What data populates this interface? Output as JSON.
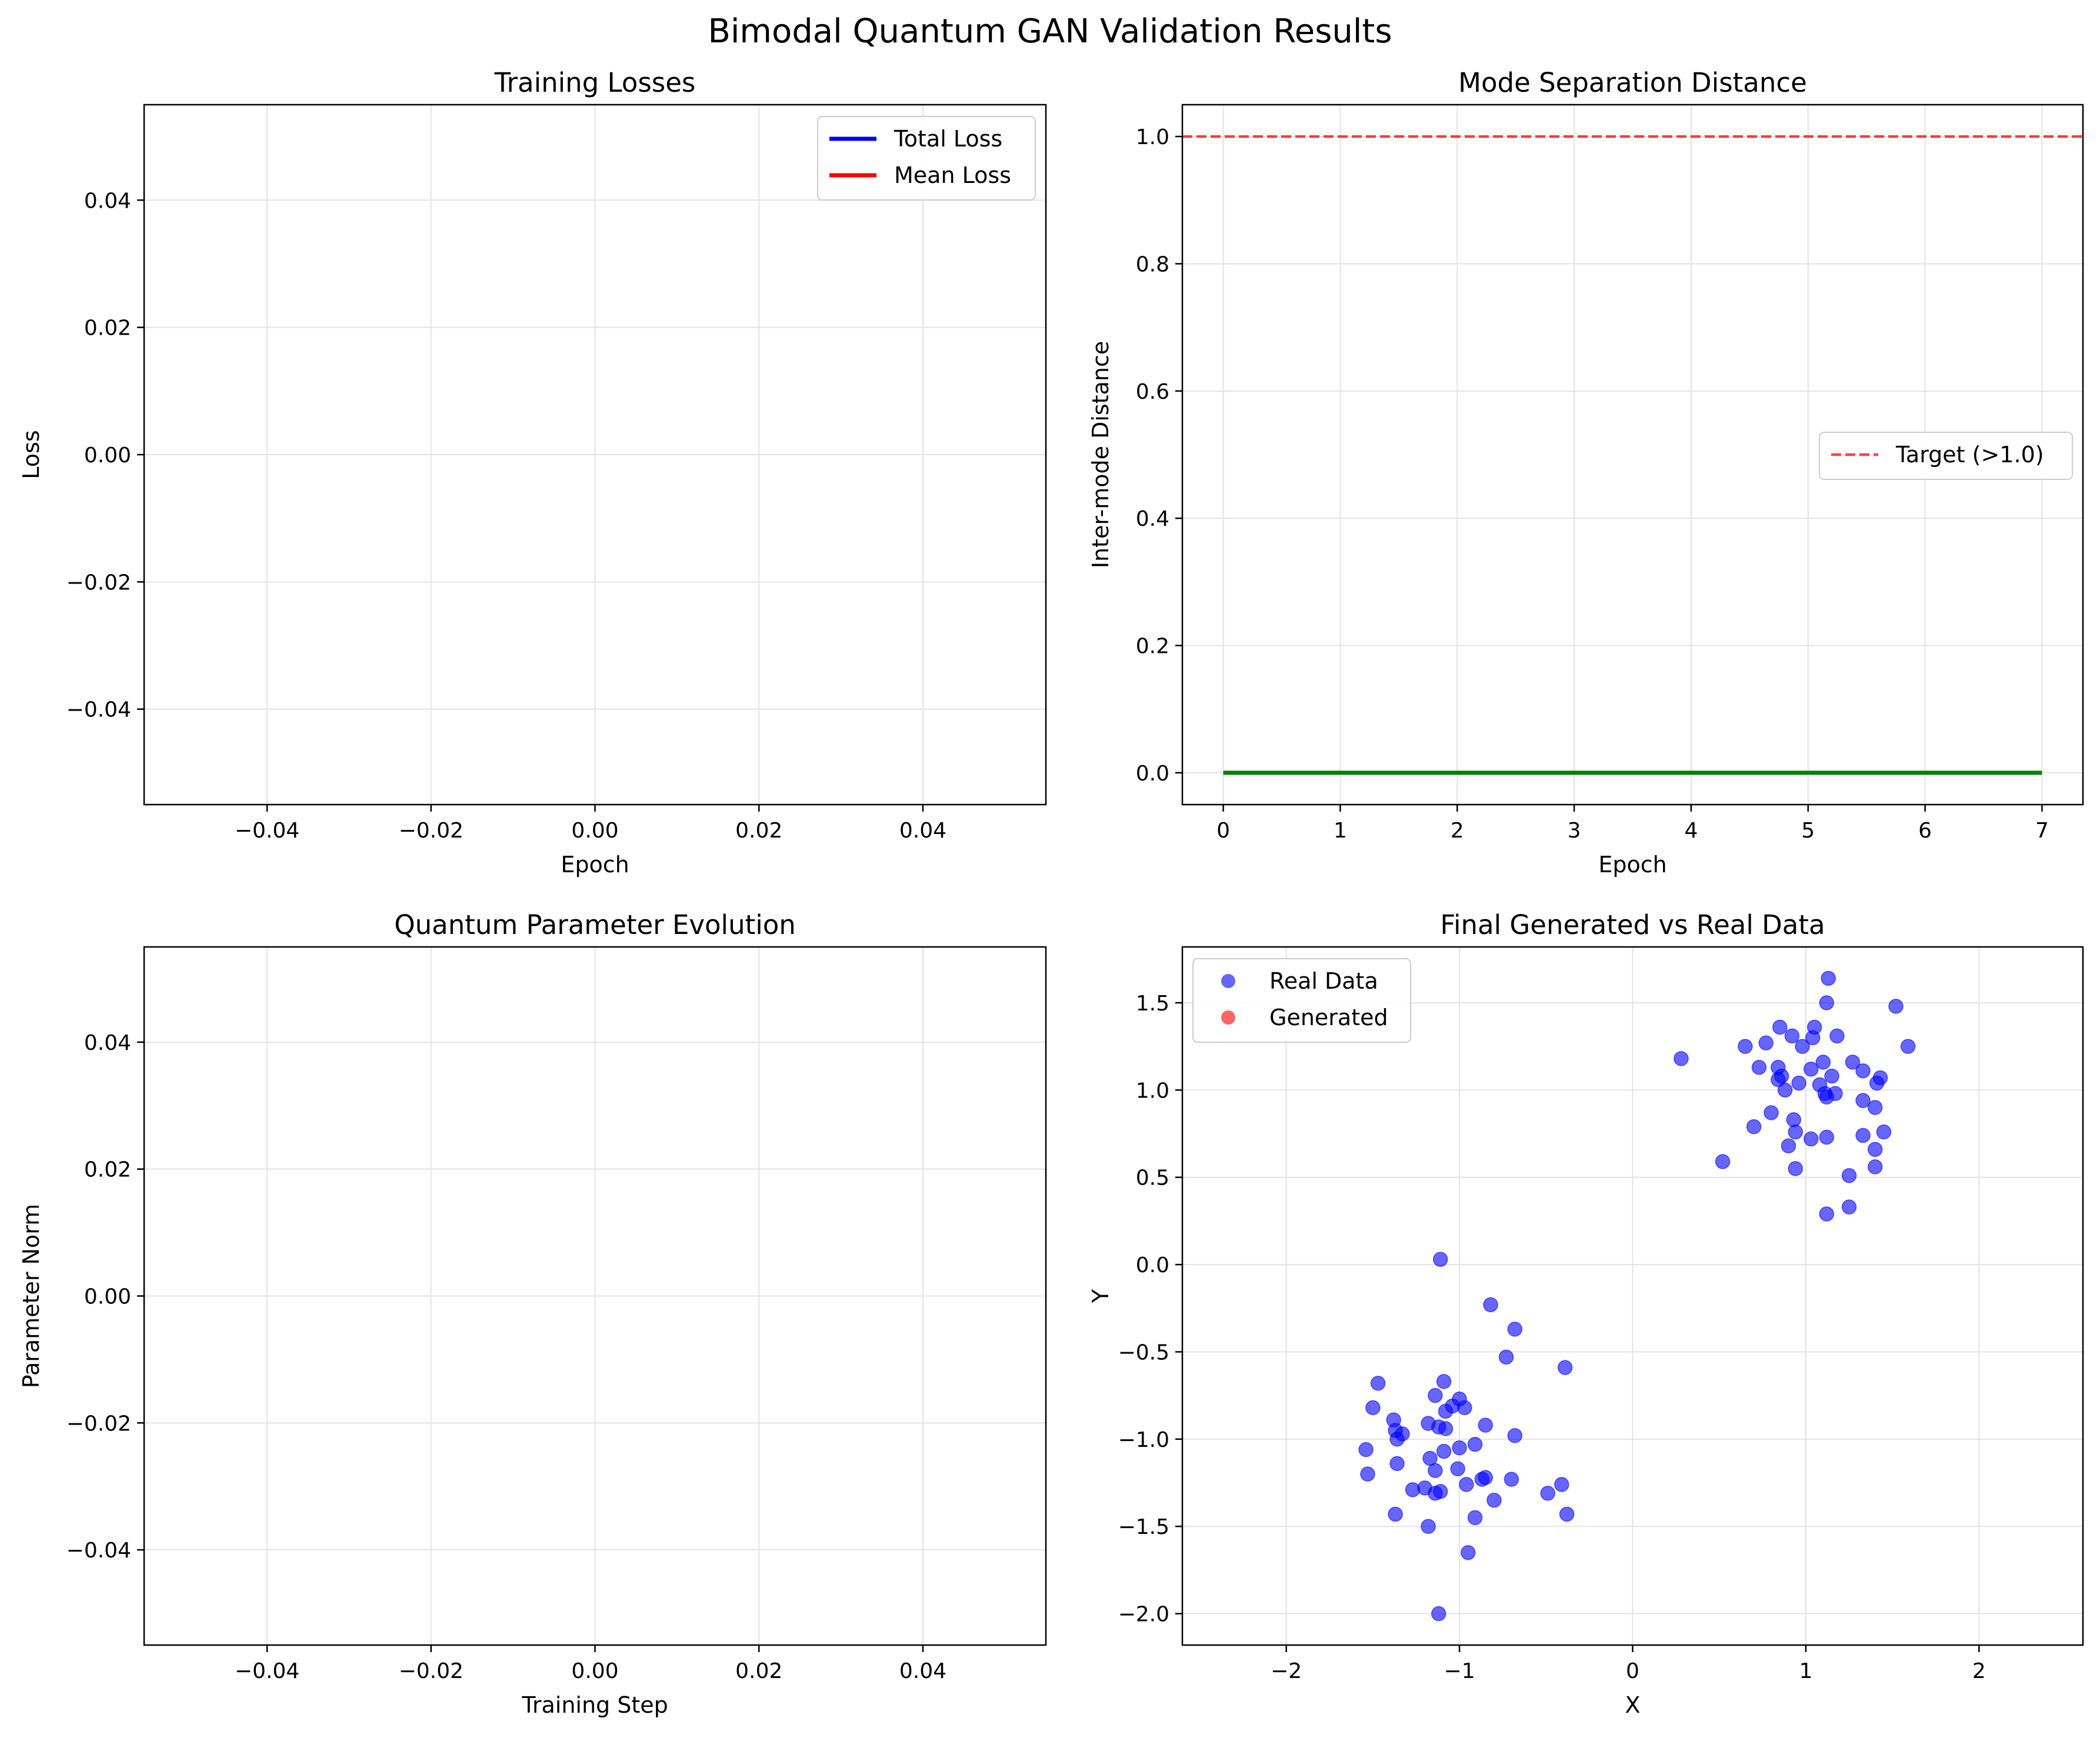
{
  "figure": {
    "suptitle": "Bimodal Quantum GAN Validation Results"
  },
  "chart_data": [
    {
      "type": "line",
      "title": "Training Losses",
      "xlabel": "Epoch",
      "ylabel": "Loss",
      "xlim": [
        -0.055,
        0.055
      ],
      "ylim": [
        -0.055,
        0.055
      ],
      "xticks": [
        -0.04,
        -0.02,
        0.0,
        0.02,
        0.04
      ],
      "xtick_labels": [
        "−0.04",
        "−0.02",
        "0.00",
        "0.02",
        "0.04"
      ],
      "yticks": [
        -0.04,
        -0.02,
        0.0,
        0.02,
        0.04
      ],
      "ytick_labels": [
        "−0.04",
        "−0.02",
        "0.00",
        "0.02",
        "0.04"
      ],
      "grid": true,
      "legend": "upper right",
      "series": [
        {
          "name": "Total Loss",
          "color": "#0000ff",
          "x": [],
          "y": []
        },
        {
          "name": "Mean Loss",
          "color": "#ff0000",
          "x": [],
          "y": []
        }
      ]
    },
    {
      "type": "line",
      "title": "Mode Separation Distance",
      "xlabel": "Epoch",
      "ylabel": "Inter-mode Distance",
      "xlim": [
        -0.35,
        7.35
      ],
      "ylim": [
        -0.05,
        1.05
      ],
      "xticks": [
        0,
        1,
        2,
        3,
        4,
        5,
        6,
        7
      ],
      "xtick_labels": [
        "0",
        "1",
        "2",
        "3",
        "4",
        "5",
        "6",
        "7"
      ],
      "yticks": [
        0.0,
        0.2,
        0.4,
        0.6,
        0.8,
        1.0
      ],
      "ytick_labels": [
        "0.0",
        "0.2",
        "0.4",
        "0.6",
        "0.8",
        "1.0"
      ],
      "grid": true,
      "legend": "center right",
      "series": [
        {
          "color": "#008000",
          "x": [
            0,
            1,
            2,
            3,
            4,
            5,
            6,
            7
          ],
          "y": [
            0,
            0,
            0,
            0,
            0,
            0,
            0,
            0
          ]
        }
      ],
      "hlines": [
        {
          "name": "Target (>1.0)",
          "y": 1.0,
          "color": "#ff0000",
          "style": "dashed"
        }
      ]
    },
    {
      "type": "line",
      "title": "Quantum Parameter Evolution",
      "xlabel": "Training Step",
      "ylabel": "Parameter Norm",
      "xlim": [
        -0.055,
        0.055
      ],
      "ylim": [
        -0.055,
        0.055
      ],
      "xticks": [
        -0.04,
        -0.02,
        0.0,
        0.02,
        0.04
      ],
      "xtick_labels": [
        "−0.04",
        "−0.02",
        "0.00",
        "0.02",
        "0.04"
      ],
      "yticks": [
        -0.04,
        -0.02,
        0.0,
        0.02,
        0.04
      ],
      "ytick_labels": [
        "−0.04",
        "−0.02",
        "0.00",
        "0.02",
        "0.04"
      ],
      "grid": true,
      "series": []
    },
    {
      "type": "scatter",
      "title": "Final Generated vs Real Data",
      "xlabel": "X",
      "ylabel": "Y",
      "xlim": [
        -2.6,
        2.6
      ],
      "ylim": [
        -2.18,
        1.82
      ],
      "xticks": [
        -2,
        -1,
        0,
        1,
        2
      ],
      "xtick_labels": [
        "−2",
        "−1",
        "0",
        "1",
        "2"
      ],
      "yticks": [
        -2.0,
        -1.5,
        -1.0,
        -0.5,
        0.0,
        0.5,
        1.0,
        1.5
      ],
      "ytick_labels": [
        "−2.0",
        "−1.5",
        "−1.0",
        "−0.5",
        "0.0",
        "0.5",
        "1.0",
        "1.5"
      ],
      "grid": true,
      "legend": "upper left",
      "series": [
        {
          "name": "Real Data",
          "color": "#0000ff",
          "points": [
            [
              1.13,
              1.64
            ],
            [
              1.52,
              1.48
            ],
            [
              1.12,
              1.5
            ],
            [
              0.85,
              1.36
            ],
            [
              1.05,
              1.36
            ],
            [
              1.18,
              1.31
            ],
            [
              0.92,
              1.31
            ],
            [
              1.04,
              1.3
            ],
            [
              0.77,
              1.27
            ],
            [
              0.98,
              1.25
            ],
            [
              0.65,
              1.25
            ],
            [
              1.59,
              1.25
            ],
            [
              0.28,
              1.18
            ],
            [
              1.27,
              1.16
            ],
            [
              1.1,
              1.16
            ],
            [
              0.73,
              1.13
            ],
            [
              0.84,
              1.13
            ],
            [
              1.03,
              1.12
            ],
            [
              1.33,
              1.11
            ],
            [
              0.86,
              1.08
            ],
            [
              1.15,
              1.08
            ],
            [
              1.43,
              1.07
            ],
            [
              0.84,
              1.06
            ],
            [
              0.96,
              1.04
            ],
            [
              1.41,
              1.04
            ],
            [
              1.08,
              1.03
            ],
            [
              0.88,
              1.0
            ],
            [
              1.11,
              0.98
            ],
            [
              1.17,
              0.98
            ],
            [
              1.12,
              0.96
            ],
            [
              1.33,
              0.94
            ],
            [
              1.4,
              0.9
            ],
            [
              0.8,
              0.87
            ],
            [
              0.93,
              0.83
            ],
            [
              0.7,
              0.79
            ],
            [
              0.94,
              0.76
            ],
            [
              1.45,
              0.76
            ],
            [
              1.33,
              0.74
            ],
            [
              1.12,
              0.73
            ],
            [
              1.03,
              0.72
            ],
            [
              0.9,
              0.68
            ],
            [
              1.4,
              0.66
            ],
            [
              0.52,
              0.59
            ],
            [
              1.4,
              0.56
            ],
            [
              0.94,
              0.55
            ],
            [
              1.25,
              0.51
            ],
            [
              1.25,
              0.33
            ],
            [
              1.12,
              0.29
            ],
            [
              -1.11,
              0.03
            ],
            [
              -0.82,
              -0.23
            ],
            [
              -0.68,
              -0.37
            ],
            [
              -0.39,
              -0.59
            ],
            [
              -0.73,
              -0.53
            ],
            [
              -1.47,
              -0.68
            ],
            [
              -1.09,
              -0.67
            ],
            [
              -1.14,
              -0.75
            ],
            [
              -1.0,
              -0.77
            ],
            [
              -1.04,
              -0.81
            ],
            [
              -0.97,
              -0.82
            ],
            [
              -1.5,
              -0.82
            ],
            [
              -1.08,
              -0.84
            ],
            [
              -1.38,
              -0.89
            ],
            [
              -1.18,
              -0.91
            ],
            [
              -0.85,
              -0.92
            ],
            [
              -1.12,
              -0.93
            ],
            [
              -1.08,
              -0.94
            ],
            [
              -1.37,
              -0.95
            ],
            [
              -1.33,
              -0.97
            ],
            [
              -0.68,
              -0.98
            ],
            [
              -1.36,
              -1.0
            ],
            [
              -0.91,
              -1.03
            ],
            [
              -1.0,
              -1.05
            ],
            [
              -1.54,
              -1.06
            ],
            [
              -1.09,
              -1.07
            ],
            [
              -1.17,
              -1.11
            ],
            [
              -1.36,
              -1.14
            ],
            [
              -1.01,
              -1.17
            ],
            [
              -1.14,
              -1.18
            ],
            [
              -1.53,
              -1.2
            ],
            [
              -0.85,
              -1.22
            ],
            [
              -0.87,
              -1.23
            ],
            [
              -0.7,
              -1.23
            ],
            [
              -0.96,
              -1.26
            ],
            [
              -0.41,
              -1.26
            ],
            [
              -1.2,
              -1.28
            ],
            [
              -1.27,
              -1.29
            ],
            [
              -1.11,
              -1.3
            ],
            [
              -0.49,
              -1.31
            ],
            [
              -1.14,
              -1.31
            ],
            [
              -0.8,
              -1.35
            ],
            [
              -0.38,
              -1.43
            ],
            [
              -1.37,
              -1.43
            ],
            [
              -0.91,
              -1.45
            ],
            [
              -1.18,
              -1.5
            ],
            [
              -0.95,
              -1.65
            ],
            [
              -1.12,
              -2.0
            ]
          ]
        },
        {
          "name": "Generated",
          "color": "#ff0000",
          "points": []
        }
      ]
    }
  ]
}
